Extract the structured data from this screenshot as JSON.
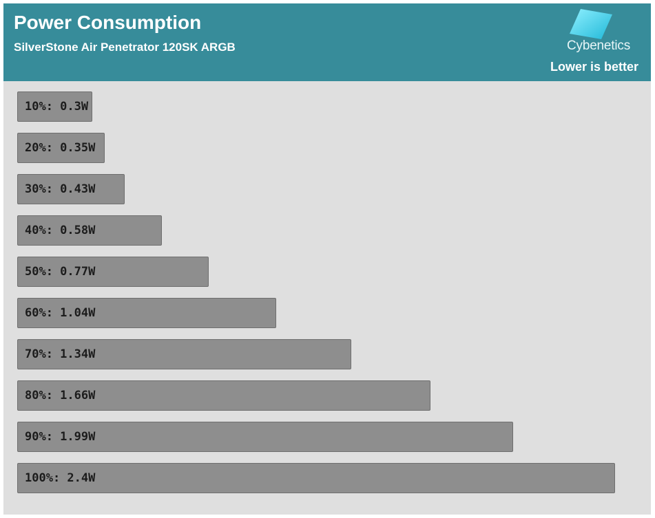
{
  "header": {
    "title": "Power Consumption",
    "subtitle": "SilverStone Air Penetrator 120SK ARGB",
    "logo_text": "Cybenetics",
    "note": "Lower is better"
  },
  "colors": {
    "header_bg": "#378c9a",
    "plot_bg": "#dfdfdf",
    "bar_fill": "#8e8e8e",
    "logo_cyan": "#4fd6ee"
  },
  "chart_data": {
    "type": "bar",
    "orientation": "horizontal",
    "title": "Power Consumption",
    "subtitle": "SilverStone Air Penetrator 120SK ARGB",
    "categories": [
      "10%",
      "20%",
      "30%",
      "40%",
      "50%",
      "60%",
      "70%",
      "80%",
      "90%",
      "100%"
    ],
    "values": [
      0.3,
      0.35,
      0.43,
      0.58,
      0.77,
      1.04,
      1.34,
      1.66,
      1.99,
      2.4
    ],
    "unit": "W",
    "labels": [
      "10%: 0.3W",
      "20%: 0.35W",
      "30%: 0.43W",
      "40%: 0.58W",
      "50%: 0.77W",
      "60%: 1.04W",
      "70%: 1.34W",
      "80%: 1.66W",
      "90%: 1.99W",
      "100%: 2.4W"
    ],
    "xlim": [
      0,
      2.4
    ],
    "grid": false,
    "legend": "none"
  }
}
